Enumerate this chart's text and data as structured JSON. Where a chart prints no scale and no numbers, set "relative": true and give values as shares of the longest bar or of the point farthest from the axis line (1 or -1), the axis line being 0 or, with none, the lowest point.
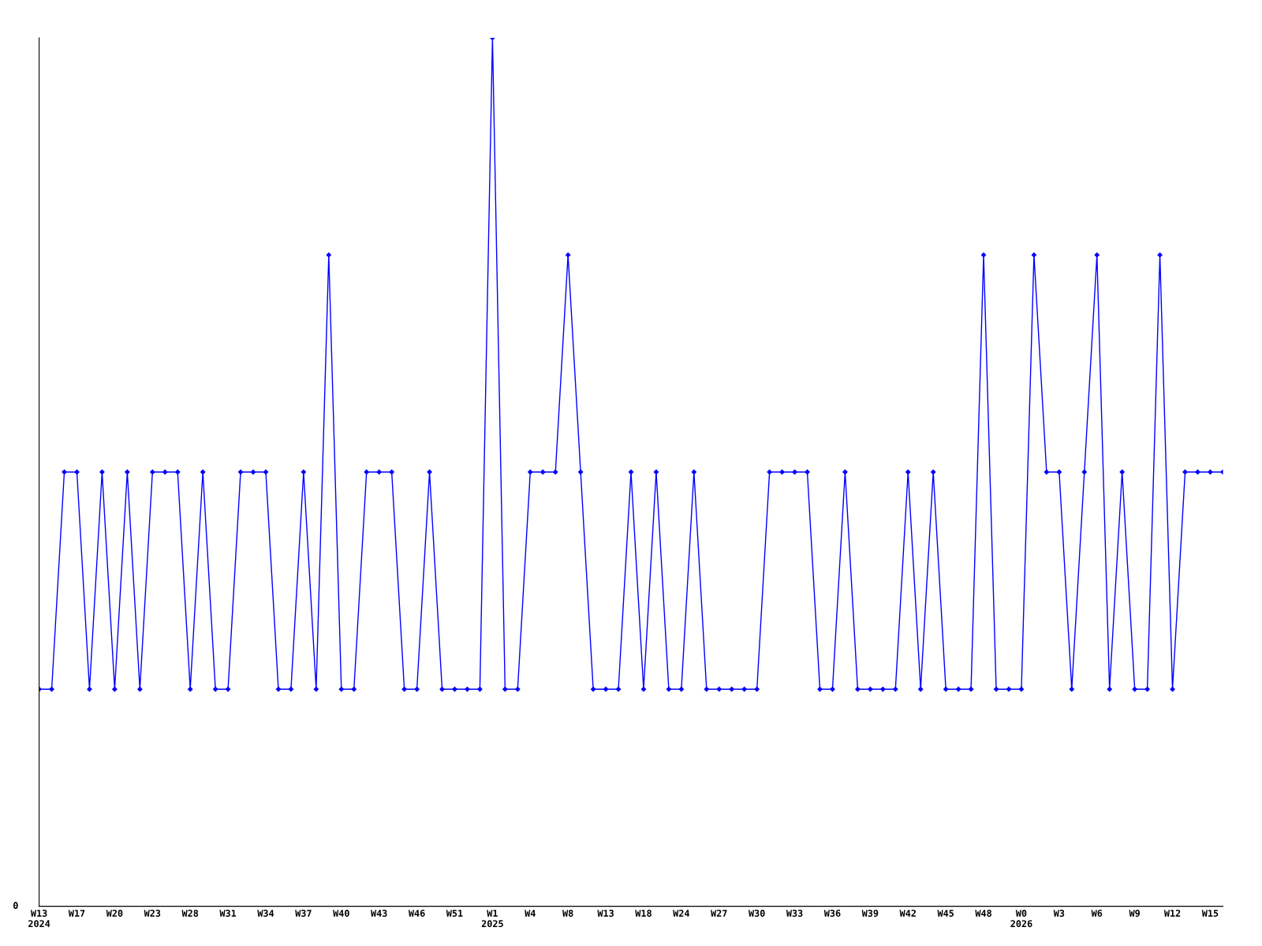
{
  "chart_data": {
    "type": "line",
    "relative": true,
    "color": "#0000ff",
    "marker": "diamond",
    "line_style": "solid",
    "grid": false,
    "legend": false,
    "categories": [
      "W13\n2024",
      null,
      null,
      "W17",
      null,
      null,
      "W20",
      null,
      null,
      "W23",
      null,
      null,
      "W28",
      null,
      null,
      "W31",
      null,
      null,
      "W34",
      null,
      null,
      "W37",
      null,
      null,
      "W40",
      null,
      null,
      "W43",
      null,
      null,
      "W46",
      null,
      null,
      "W51",
      null,
      null,
      "W1\n2025",
      null,
      null,
      "W4",
      null,
      null,
      "W8",
      null,
      null,
      "W13",
      null,
      null,
      "W18",
      null,
      null,
      "W24",
      null,
      null,
      "W27",
      null,
      null,
      "W30",
      null,
      null,
      "W33",
      null,
      null,
      "W36",
      null,
      null,
      "W39",
      null,
      null,
      "W42",
      null,
      null,
      "W45",
      null,
      null,
      "W48",
      null,
      null,
      "W0\n2026",
      null,
      null,
      "W3",
      null,
      null,
      "W6",
      null,
      null,
      "W9",
      null,
      null,
      "W12",
      null,
      null,
      "W15",
      null
    ],
    "values": [
      0.25,
      0.25,
      0.5,
      0.5,
      0.25,
      0.5,
      0.25,
      0.5,
      0.25,
      0.5,
      0.5,
      0.5,
      0.25,
      0.5,
      0.25,
      0.25,
      0.5,
      0.5,
      0.5,
      0.25,
      0.25,
      0.5,
      0.25,
      0.75,
      0.25,
      0.25,
      0.5,
      0.5,
      0.5,
      0.25,
      0.25,
      0.5,
      0.25,
      0.25,
      0.25,
      0.25,
      1,
      0.25,
      0.25,
      0.5,
      0.5,
      0.5,
      0.75,
      0.5,
      0.25,
      0.25,
      0.25,
      0.5,
      0.25,
      0.5,
      0.25,
      0.25,
      0.5,
      0.25,
      0.25,
      0.25,
      0.25,
      0.25,
      0.5,
      0.5,
      0.5,
      0.5,
      0.25,
      0.25,
      0.5,
      0.25,
      0.25,
      0.25,
      0.25,
      0.5,
      0.25,
      0.5,
      0.25,
      0.25,
      0.25,
      0.75,
      0.25,
      0.25,
      0.25,
      0.75,
      0.5,
      0.5,
      0.25,
      0.5,
      0.75,
      0.25,
      0.5,
      0.25,
      0.25,
      0.75,
      0.25,
      0.5,
      0.5,
      0.5,
      0.5
    ],
    "annotations": [
      "0"
    ]
  }
}
